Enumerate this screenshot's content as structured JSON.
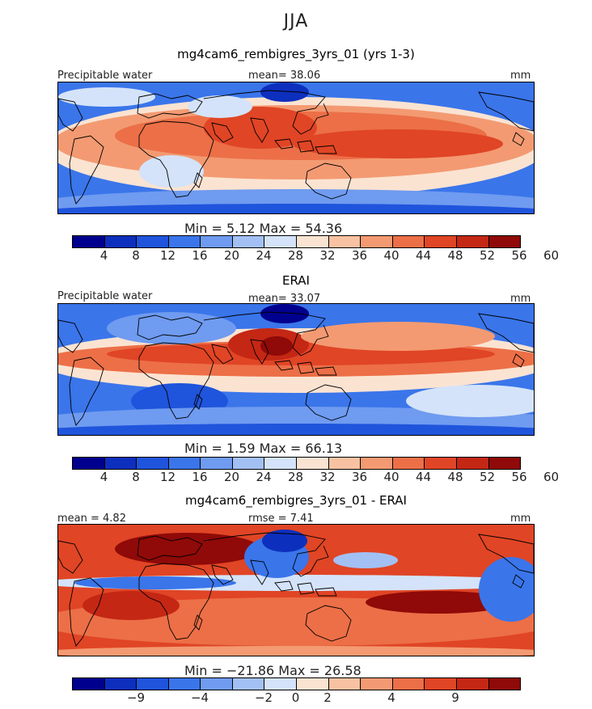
{
  "season": "JJA",
  "colors": {
    "palette": [
      "#00008e",
      "#0d2fbd",
      "#1f54dc",
      "#3a75ea",
      "#6f9bf0",
      "#a3c0f5",
      "#d4e3f9",
      "#fbe3d2",
      "#f8c2a2",
      "#f39a72",
      "#ec6f47",
      "#e04525",
      "#c42714",
      "#8f0a08"
    ],
    "diff_palette": [
      "#00008e",
      "#0d2fbd",
      "#1f54dc",
      "#3a75ea",
      "#6f9bf0",
      "#a3c0f5",
      "#d4e3f9",
      "#fbe3d2",
      "#f8c2a2",
      "#f39a72",
      "#ec6f47",
      "#e04525",
      "#c42714",
      "#8f0a08"
    ]
  },
  "panels": [
    {
      "title": "mg4cam6_rembigres_3yrs_01 (yrs 1-3)",
      "left_label": "Precipitable water",
      "mean_label": "mean=  38.06",
      "units": "mm",
      "minmax_label": "Min =    5.12  Max =   54.36",
      "colorbar_ticks": [
        "4",
        "8",
        "12",
        "16",
        "20",
        "24",
        "28",
        "32",
        "36",
        "40",
        "44",
        "48",
        "52",
        "56",
        "60"
      ],
      "variant": "model"
    },
    {
      "title": "ERAI",
      "left_label": "Precipitable water",
      "mean_label": "mean=  33.07",
      "units": "mm",
      "minmax_label": "Min =    1.59  Max =   66.13",
      "colorbar_ticks": [
        "4",
        "8",
        "12",
        "16",
        "20",
        "24",
        "28",
        "32",
        "36",
        "40",
        "44",
        "48",
        "52",
        "56",
        "60"
      ],
      "variant": "obs"
    },
    {
      "title": "mg4cam6_rembigres_3yrs_01 - ERAI",
      "left_label": "mean =    4.82",
      "mean_label": "rmse =    7.41",
      "units": "mm",
      "minmax_label": "Min = −21.86  Max =   26.58",
      "colorbar_ticks": [
        "−9",
        "−4",
        "−2",
        "0",
        "2",
        "4",
        "9"
      ],
      "variant": "diff"
    }
  ],
  "chart_data": [
    {
      "type": "heatmap",
      "title": "mg4cam6_rembigres_3yrs_01 (yrs 1-3)",
      "variable": "Precipitable water",
      "units": "mm",
      "mean": 38.06,
      "min": 5.12,
      "max": 54.36,
      "contour_levels": [
        4,
        8,
        12,
        16,
        20,
        24,
        28,
        32,
        36,
        40,
        44,
        48,
        52,
        56,
        60
      ]
    },
    {
      "type": "heatmap",
      "title": "ERAI",
      "variable": "Precipitable water",
      "units": "mm",
      "mean": 33.07,
      "min": 1.59,
      "max": 66.13,
      "contour_levels": [
        4,
        8,
        12,
        16,
        20,
        24,
        28,
        32,
        36,
        40,
        44,
        48,
        52,
        56,
        60
      ]
    },
    {
      "type": "heatmap",
      "title": "mg4cam6_rembigres_3yrs_01 - ERAI",
      "units": "mm",
      "mean": 4.82,
      "rmse": 7.41,
      "min": -21.86,
      "max": 26.58,
      "contour_levels": [
        -9,
        -4,
        -2,
        0,
        2,
        4,
        9
      ]
    }
  ]
}
